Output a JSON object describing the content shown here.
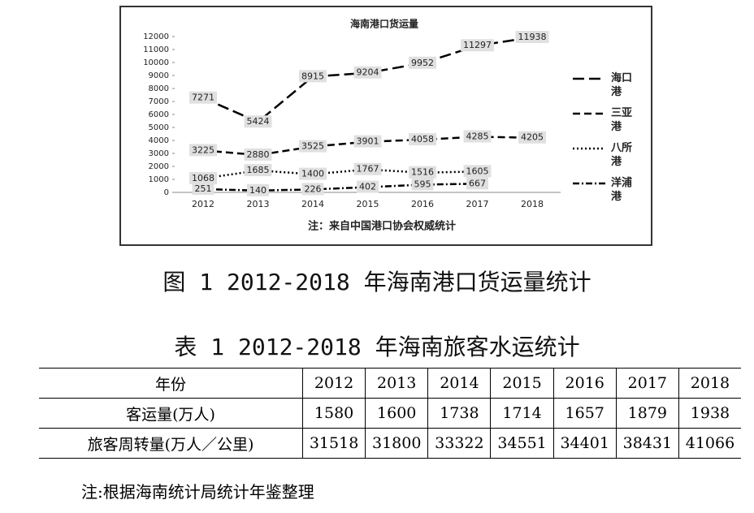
{
  "chart_data": {
    "type": "line",
    "title": "海南港口货运量",
    "categories": [
      "2012",
      "2013",
      "2014",
      "2015",
      "2016",
      "2017",
      "2018"
    ],
    "series": [
      {
        "name": "海口港",
        "color": "#000000",
        "values": [
          7271,
          5424,
          8915,
          9204,
          9952,
          11297,
          11938
        ]
      },
      {
        "name": "三亚港",
        "color": "#000000",
        "values": [
          3225,
          2880,
          3525,
          3901,
          4058,
          4285,
          4205
        ]
      },
      {
        "name": "八所港",
        "color": "#000000",
        "values": [
          1068,
          1685,
          1400,
          1767,
          1516,
          1605,
          null
        ]
      },
      {
        "name": "洋浦港",
        "color": "#000000",
        "values": [
          251,
          140,
          226,
          402,
          595,
          667,
          null
        ]
      }
    ],
    "ylim": [
      0,
      12000
    ],
    "yticks": [
      0,
      1000,
      2000,
      3000,
      4000,
      5000,
      6000,
      7000,
      8000,
      9000,
      10000,
      11000,
      12000
    ],
    "annotation": "注：来自中国港口协会权威统计",
    "legend": "right"
  },
  "figure_caption": "图 1 2012-2018 年海南港口货运量统计",
  "table_caption": "表 1 2012-2018 年海南旅客水运统计",
  "table": {
    "header": [
      "年份",
      "2012",
      "2013",
      "2014",
      "2015",
      "2016",
      "2017",
      "2018"
    ],
    "rows": [
      [
        "客运量(万人)",
        "1580",
        "1600",
        "1738",
        "1714",
        "1657",
        "1879",
        "1938"
      ],
      [
        "旅客周转量(万人／公里)",
        "31518",
        "31800",
        "33322",
        "34551",
        "34401",
        "38431",
        "41066"
      ]
    ]
  },
  "note": "注:根据海南统计局统计年鉴整理"
}
